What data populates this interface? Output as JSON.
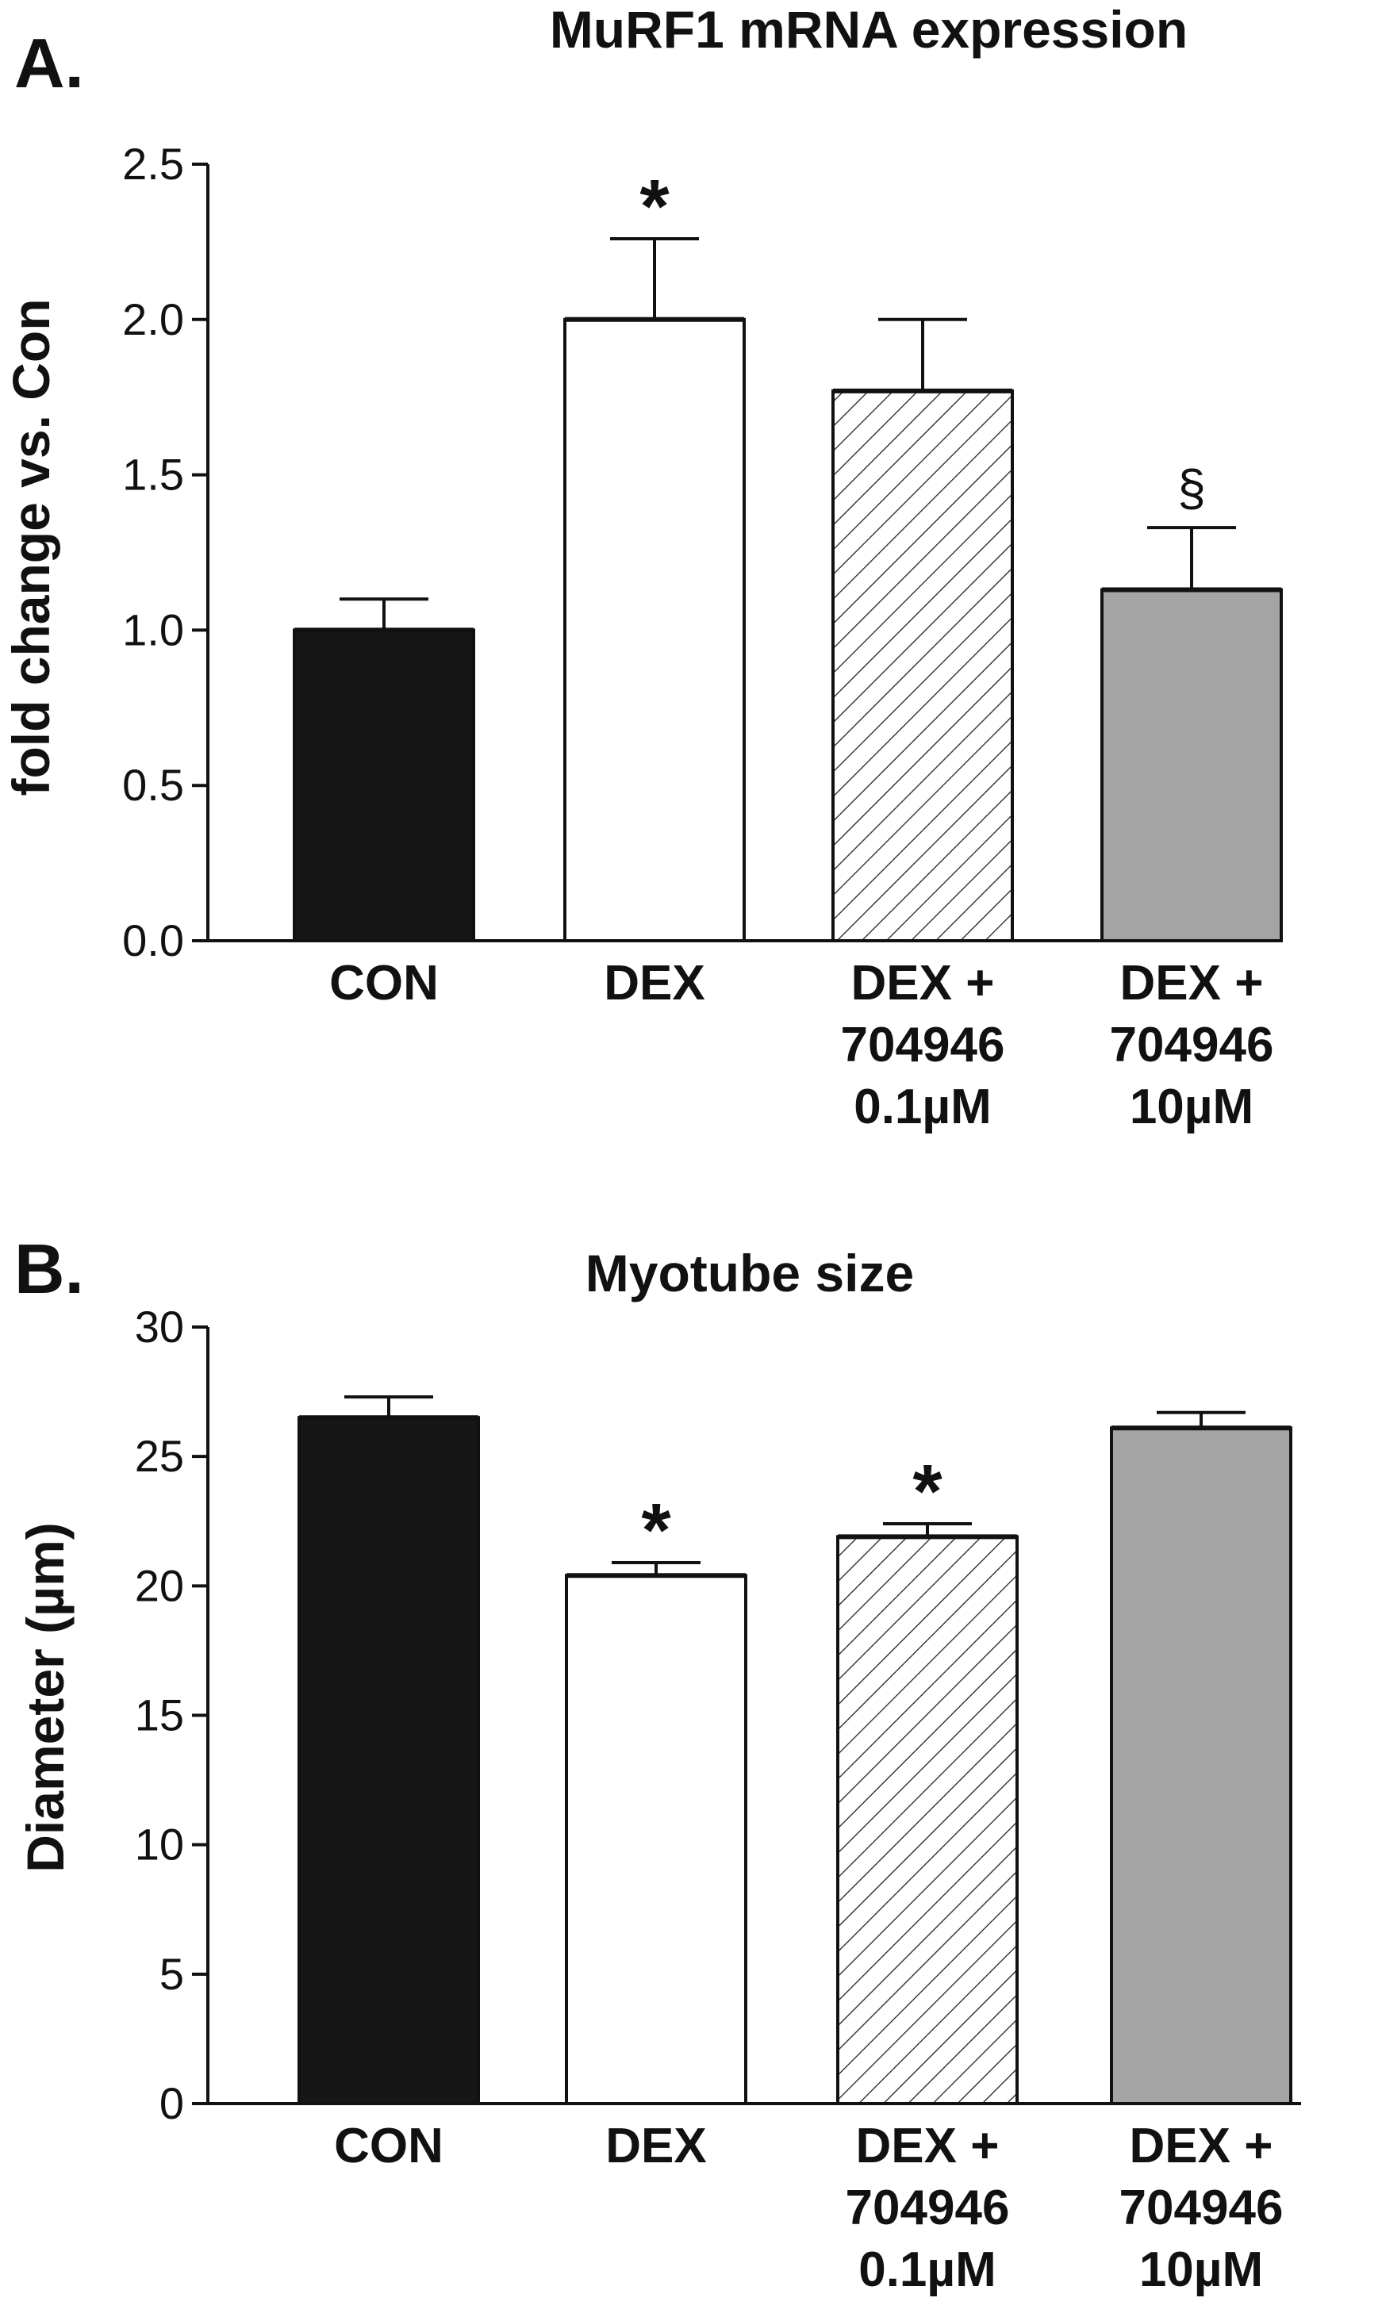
{
  "panels": [
    {
      "letter": "A.",
      "chart_data": {
        "type": "bar",
        "title": "MuRF1 mRNA expression",
        "xlabel": "",
        "ylabel": "fold change vs. Con",
        "ylim": [
          0,
          2.5
        ],
        "yticks": [
          0,
          0.5,
          1.0,
          1.5,
          2.0,
          2.5
        ],
        "ytick_labels": [
          "0.0",
          "0.5",
          "1.0",
          "1.5",
          "2.0",
          "2.5"
        ],
        "categories": [
          [
            "CON"
          ],
          [
            "DEX"
          ],
          [
            "DEX +",
            "704946",
            "0.1µM"
          ],
          [
            "DEX +",
            "704946",
            "10µM"
          ]
        ],
        "values": [
          1.0,
          2.0,
          1.77,
          1.13
        ],
        "errors": [
          0.1,
          0.26,
          0.23,
          0.2
        ],
        "fills": [
          "solid-black",
          "white",
          "hatched",
          "gray"
        ],
        "annotations": [
          "",
          "*",
          "",
          "§"
        ],
        "grid": false
      }
    },
    {
      "letter": "B.",
      "chart_data": {
        "type": "bar",
        "title": "Myotube size",
        "xlabel": "",
        "ylabel": "Diameter (µm)",
        "ylim": [
          0,
          30
        ],
        "yticks": [
          0,
          5,
          10,
          15,
          20,
          25,
          30
        ],
        "ytick_labels": [
          "0",
          "5",
          "10",
          "15",
          "20",
          "25",
          "30"
        ],
        "categories": [
          [
            "CON"
          ],
          [
            "DEX"
          ],
          [
            "DEX +",
            "704946",
            "0.1µM"
          ],
          [
            "DEX +",
            "704946",
            "10µM"
          ]
        ],
        "values": [
          26.5,
          20.4,
          21.9,
          26.1
        ],
        "errors": [
          0.8,
          0.5,
          0.5,
          0.6
        ],
        "fills": [
          "solid-black",
          "white",
          "hatched",
          "gray"
        ],
        "annotations": [
          "",
          "*",
          "*",
          ""
        ],
        "grid": false
      }
    }
  ],
  "colors": {
    "solid-black": "#161616",
    "white": "#ffffff",
    "gray": "#a4a4a4",
    "hatched": "#ffffff",
    "axis": "#111111"
  }
}
